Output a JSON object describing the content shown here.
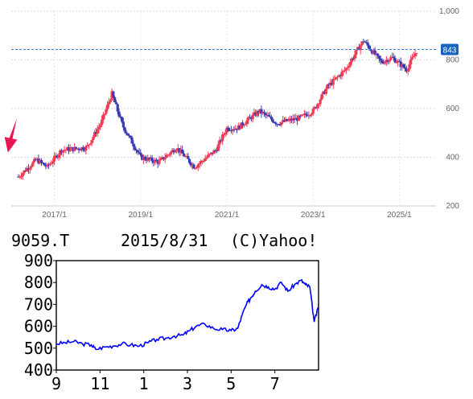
{
  "chart_data": [
    {
      "type": "candlestick",
      "xlabel": "",
      "ylabel": "",
      "ylim": [
        200,
        1000
      ],
      "x_ticks": [
        "2017/1",
        "2019/1",
        "2021/1",
        "2023/1",
        "2025/1"
      ],
      "y_ticks": [
        "1,000",
        "800",
        "600",
        "400",
        "200"
      ],
      "y_tick_values": [
        1000,
        800,
        600,
        400,
        200
      ],
      "current_price_label": "843",
      "current_price": 843,
      "grid": true,
      "up_color": "#f03c55",
      "down_color": "#3b3bb3",
      "marker_color": "#e8174f",
      "key_points": [
        {
          "x": "2016/3",
          "y": 320
        },
        {
          "x": "2016/8",
          "y": 390
        },
        {
          "x": "2016/11",
          "y": 360
        },
        {
          "x": "2017/3",
          "y": 430
        },
        {
          "x": "2017/10",
          "y": 440
        },
        {
          "x": "2018/2",
          "y": 540
        },
        {
          "x": "2018/5",
          "y": 660
        },
        {
          "x": "2018/8",
          "y": 530
        },
        {
          "x": "2019/1",
          "y": 400
        },
        {
          "x": "2019/6",
          "y": 380
        },
        {
          "x": "2019/11",
          "y": 440
        },
        {
          "x": "2020/4",
          "y": 360
        },
        {
          "x": "2020/10",
          "y": 430
        },
        {
          "x": "2021/1",
          "y": 520
        },
        {
          "x": "2021/4",
          "y": 520
        },
        {
          "x": "2021/10",
          "y": 590
        },
        {
          "x": "2022/3",
          "y": 540
        },
        {
          "x": "2022/9",
          "y": 560
        },
        {
          "x": "2023/1",
          "y": 590
        },
        {
          "x": "2023/5",
          "y": 690
        },
        {
          "x": "2023/10",
          "y": 760
        },
        {
          "x": "2024/3",
          "y": 880
        },
        {
          "x": "2024/8",
          "y": 790
        },
        {
          "x": "2024/11",
          "y": 810
        },
        {
          "x": "2025/3",
          "y": 760
        },
        {
          "x": "2025/6",
          "y": 843
        }
      ]
    },
    {
      "type": "line",
      "title": "9059.T",
      "date": "2015/8/31",
      "copyright": "(C)Yahoo!",
      "xlabel": "",
      "ylabel": "",
      "ylim": [
        400,
        900
      ],
      "y_ticks": [
        "900",
        "800",
        "700",
        "600",
        "500",
        "400"
      ],
      "y_tick_values": [
        900,
        800,
        700,
        600,
        500,
        400
      ],
      "x_ticks": [
        "9",
        "11",
        "1",
        "3",
        "5",
        "7"
      ],
      "x_tick_values": [
        0,
        2,
        4,
        6,
        8,
        10
      ],
      "xlim": [
        0,
        12
      ],
      "line_color": "#0000ff",
      "x": [
        0,
        0.4,
        0.8,
        1.2,
        1.6,
        1.8,
        2.2,
        2.6,
        3.0,
        3.4,
        3.8,
        4.2,
        4.6,
        5.0,
        5.4,
        5.8,
        6.1,
        6.4,
        6.8,
        7.2,
        7.6,
        8.0,
        8.3,
        8.5,
        8.7,
        8.9,
        9.1,
        9.4,
        9.7,
        10.0,
        10.3,
        10.6,
        10.9,
        11.2,
        11.4,
        11.6,
        11.8,
        12.0
      ],
      "values": [
        520,
        525,
        530,
        520,
        515,
        495,
        505,
        510,
        520,
        515,
        510,
        525,
        540,
        545,
        555,
        560,
        580,
        600,
        610,
        590,
        585,
        580,
        590,
        650,
        700,
        730,
        760,
        790,
        780,
        770,
        800,
        760,
        790,
        810,
        790,
        780,
        620,
        690
      ]
    }
  ]
}
